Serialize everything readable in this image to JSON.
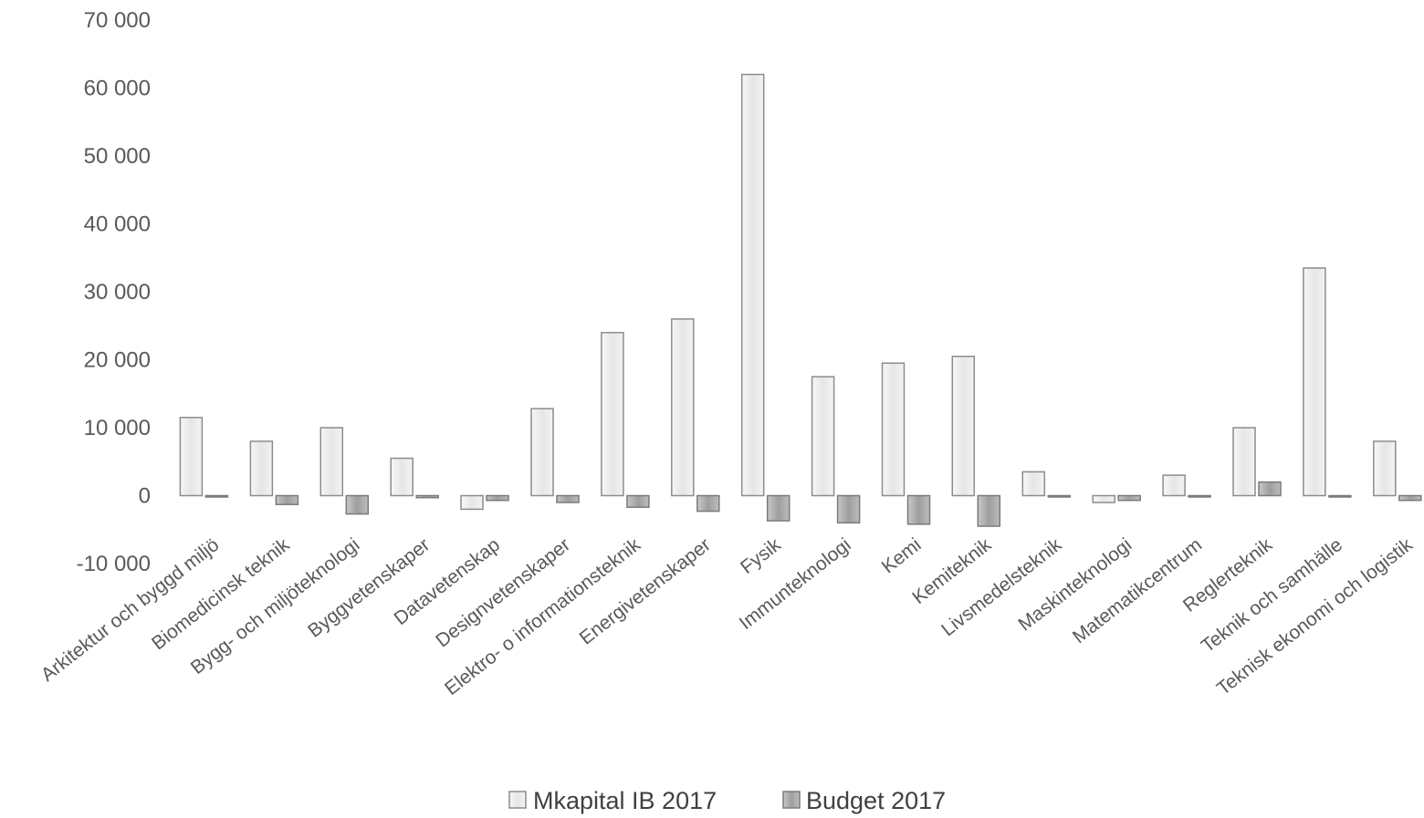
{
  "chart_data": {
    "type": "bar",
    "categories": [
      "Arkitektur och byggd miljö",
      "Biomedicinsk teknik",
      "Bygg- och miljöteknologi",
      "Byggvetenskaper",
      "Datavetenskap",
      "Designvetenskaper",
      "Elektro- o informationsteknik",
      "Energivetenskaper",
      "Fysik",
      "Immunteknologi",
      "Kemi",
      "Kemiteknik",
      "Livsmedelsteknik",
      "Maskinteknologi",
      "Matematikcentrum",
      "Reglerteknik",
      "Teknik och samhälle",
      "Teknisk ekonomi och logistik"
    ],
    "series": [
      {
        "name": "Mkapital IB 2017",
        "color": "#eeeeee",
        "values": [
          11500,
          8000,
          10000,
          5500,
          -2000,
          12800,
          24000,
          26000,
          62000,
          17500,
          19500,
          20500,
          3500,
          -1000,
          3000,
          10000,
          33500,
          8000
        ]
      },
      {
        "name": "Budget 2017",
        "color": "#b0b0b0",
        "values": [
          0,
          -1300,
          -2700,
          -300,
          -700,
          -1000,
          -1700,
          -2300,
          -3700,
          -4000,
          -4200,
          -4500,
          0,
          -700,
          0,
          2000,
          0,
          -700
        ]
      }
    ],
    "ylim": [
      -10000,
      70000
    ],
    "yticks": [
      -10000,
      0,
      10000,
      20000,
      30000,
      40000,
      50000,
      60000,
      70000
    ],
    "ytick_labels": [
      "-10 000",
      "0",
      "10 000",
      "20 000",
      "30 000",
      "40 000",
      "50 000",
      "60 000",
      "70 000"
    ],
    "title": "",
    "xlabel": "",
    "ylabel": "",
    "grid": false,
    "legend_position": "bottom"
  }
}
